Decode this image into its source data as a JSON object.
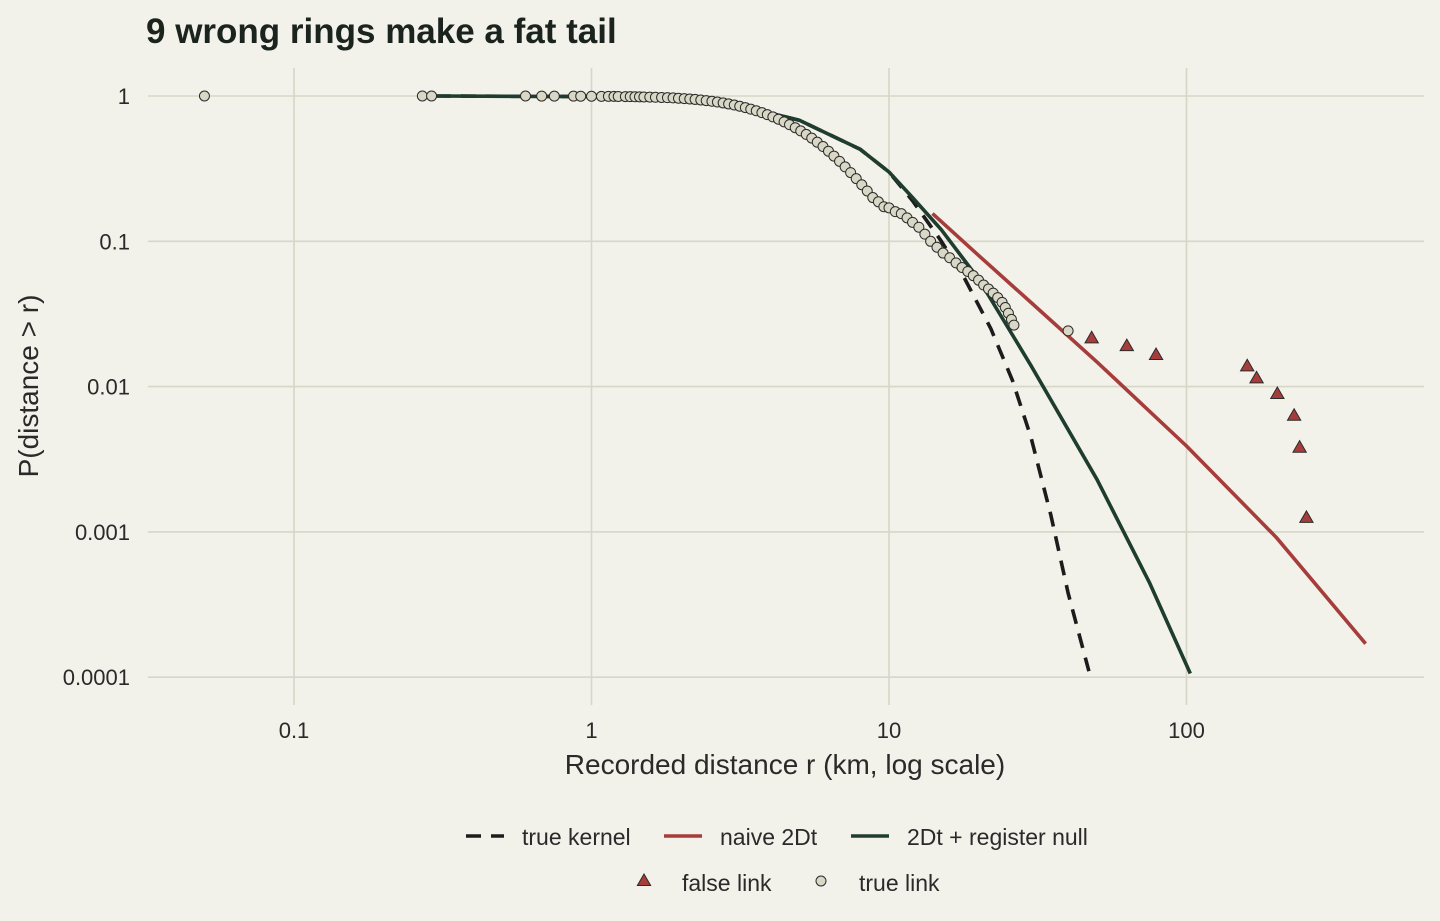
{
  "chart_data": {
    "type": "scatter",
    "title": "9 wrong rings make a fat tail",
    "xlabel": "Recorded distance r (km, log scale)",
    "ylabel": "P(distance > r)",
    "x_scale": "log",
    "y_scale": "log",
    "xlim": [
      0.03,
      600
    ],
    "ylim": [
      7e-05,
      1.4
    ],
    "x_ticks": [
      {
        "value": 0.1,
        "label": "0.1"
      },
      {
        "value": 1,
        "label": "1"
      },
      {
        "value": 10,
        "label": "10"
      },
      {
        "value": 100,
        "label": "100"
      }
    ],
    "y_ticks": [
      {
        "value": 1,
        "label": "1"
      },
      {
        "value": 0.1,
        "label": "0.1"
      },
      {
        "value": 0.01,
        "label": "0.01"
      },
      {
        "value": 0.001,
        "label": "0.001"
      },
      {
        "value": 0.0001,
        "label": "0.0001"
      }
    ],
    "grid": true,
    "legend_position": "bottom",
    "lines": [
      {
        "name": "true kernel",
        "color": "#1c1c1c",
        "dash": true,
        "points": [
          [
            0.3,
            1.0
          ],
          [
            1,
            0.99
          ],
          [
            2,
            0.95
          ],
          [
            3,
            0.88
          ],
          [
            5,
            0.68
          ],
          [
            8,
            0.43
          ],
          [
            10,
            0.3
          ],
          [
            12,
            0.19
          ],
          [
            15,
            0.1
          ],
          [
            18,
            0.055
          ],
          [
            22,
            0.025
          ],
          [
            26,
            0.011
          ],
          [
            30,
            0.0045
          ],
          [
            35,
            0.0013
          ],
          [
            40,
            0.00038
          ],
          [
            47,
            0.00011
          ]
        ]
      },
      {
        "name": "naive 2Dt",
        "color": "#a63d3b",
        "dash": false,
        "points": [
          [
            14,
            0.155
          ],
          [
            20,
            0.08
          ],
          [
            30,
            0.038
          ],
          [
            50,
            0.0148
          ],
          [
            100,
            0.0039
          ],
          [
            200,
            0.00092
          ],
          [
            400,
            0.00017
          ]
        ]
      },
      {
        "name": "2Dt + register null",
        "color": "#1e3d2f",
        "dash": false,
        "points": [
          [
            0.3,
            1.0
          ],
          [
            1,
            0.99
          ],
          [
            2,
            0.95
          ],
          [
            3,
            0.88
          ],
          [
            5,
            0.68
          ],
          [
            8,
            0.43
          ],
          [
            10,
            0.3
          ],
          [
            12,
            0.2
          ],
          [
            15,
            0.12
          ],
          [
            20,
            0.055
          ],
          [
            30,
            0.014
          ],
          [
            50,
            0.0023
          ],
          [
            75,
            0.00045
          ],
          [
            103,
            0.000106
          ]
        ]
      }
    ],
    "series": [
      {
        "name": "false link",
        "marker": "triangle",
        "fill": "#a63d3b",
        "x": [
          48,
          63,
          79,
          160,
          172,
          202,
          230,
          240,
          253
        ],
        "y": [
          0.0215,
          0.019,
          0.0165,
          0.0138,
          0.0114,
          0.0089,
          0.0063,
          0.0038,
          0.00125
        ]
      },
      {
        "name": "true link",
        "marker": "circle",
        "fill": "#d9d7c5",
        "x": [
          0.05,
          0.27,
          0.29,
          0.6,
          0.68,
          0.75,
          0.87,
          0.92,
          1.0,
          1.08,
          1.14,
          1.19,
          1.23,
          1.3,
          1.35,
          1.4,
          1.45,
          1.5,
          1.57,
          1.64,
          1.72,
          1.8,
          1.88,
          1.96,
          2.05,
          2.14,
          2.23,
          2.33,
          2.43,
          2.54,
          2.65,
          2.77,
          2.89,
          3.02,
          3.15,
          3.29,
          3.43,
          3.58,
          3.74,
          3.9,
          4.07,
          4.25,
          4.44,
          4.63,
          4.84,
          5.05,
          5.27,
          5.5,
          5.74,
          6.0,
          6.26,
          6.53,
          6.82,
          7.12,
          7.43,
          7.76,
          8.1,
          8.45,
          8.82,
          9.21,
          9.61,
          10.0,
          10.5,
          11.0,
          11.5,
          12.0,
          12.6,
          13.2,
          13.8,
          14.5,
          15.2,
          16.0,
          16.8,
          17.6,
          18.4,
          19.2,
          20.0,
          20.8,
          21.6,
          22.4,
          23.2,
          24.0,
          24.6,
          25.2,
          25.8,
          26.3,
          40.0
        ],
        "y": [
          1.0,
          1.0,
          1.0,
          1.0,
          0.999,
          0.998,
          0.998,
          0.997,
          0.996,
          0.995,
          0.995,
          0.994,
          0.993,
          0.991,
          0.99,
          0.988,
          0.987,
          0.985,
          0.983,
          0.98,
          0.977,
          0.974,
          0.97,
          0.965,
          0.96,
          0.954,
          0.947,
          0.939,
          0.93,
          0.92,
          0.909,
          0.896,
          0.882,
          0.867,
          0.85,
          0.832,
          0.812,
          0.791,
          0.768,
          0.744,
          0.718,
          0.692,
          0.664,
          0.635,
          0.605,
          0.575,
          0.544,
          0.513,
          0.481,
          0.449,
          0.417,
          0.386,
          0.355,
          0.325,
          0.297,
          0.27,
          0.245,
          0.222,
          0.2,
          0.187,
          0.173,
          0.17,
          0.16,
          0.155,
          0.145,
          0.135,
          0.125,
          0.112,
          0.1,
          0.091,
          0.083,
          0.077,
          0.071,
          0.066,
          0.062,
          0.058,
          0.054,
          0.05,
          0.047,
          0.044,
          0.041,
          0.038,
          0.035,
          0.032,
          0.029,
          0.0265,
          0.0242
        ]
      }
    ]
  }
}
